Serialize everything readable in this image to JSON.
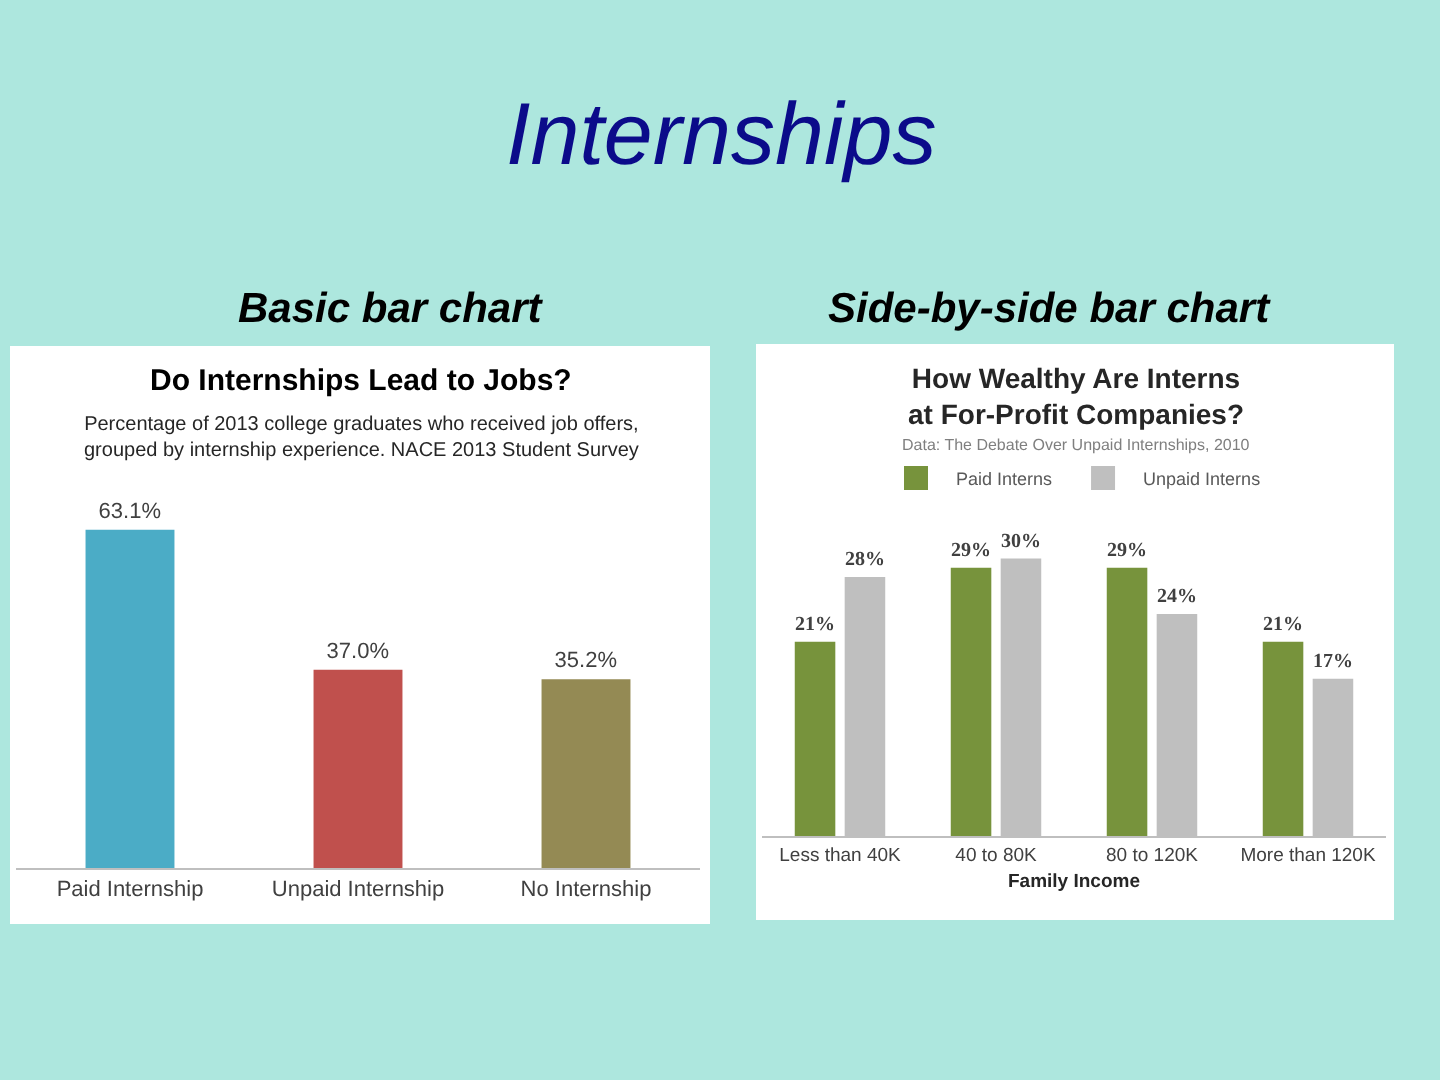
{
  "chart_data": [
    {
      "type": "other",
      "title": "Internships"
    },
    {
      "type": "bar",
      "title": "Do Internships Lead to Jobs?",
      "subtitle": "Percentage of 2013 college graduates who received job offers,\ngrouped by internship experience. NACE 2013 Student Survey",
      "annotations": [
        "Basic bar chart"
      ],
      "categories": [
        "Paid Internship",
        "Unpaid Internship",
        "No Internship"
      ],
      "values": [
        63.1,
        37.0,
        35.2
      ],
      "colors": [
        "#4bacc6",
        "#c0504d",
        "#948a54"
      ],
      "value_labels": [
        "63.1%",
        "37.0%",
        "35.2%"
      ],
      "tick_labels": "x"
    },
    {
      "type": "bar",
      "title": "How Wealthy Are Interns\nat For-Profit Companies?",
      "subtitle": "Data: The Debate Over Unpaid Internships, 2010",
      "annotations": [
        "Side-by-side bar chart"
      ],
      "xlabel": "Family Income",
      "categories": [
        "Less than 40K",
        "40 to 80K",
        "80 to 120K",
        "More than 120K"
      ],
      "series": [
        {
          "name": "Paid Interns",
          "color": "#77933c",
          "values": [
            21,
            29,
            29,
            21
          ],
          "value_labels": [
            "21%",
            "29%",
            "29%",
            "21%"
          ]
        },
        {
          "name": "Unpaid Interns",
          "color": "#bfbfbf",
          "values": [
            28,
            30,
            24,
            17
          ],
          "value_labels": [
            "28%",
            "30%",
            "24%",
            "17%"
          ]
        }
      ],
      "legend": "top",
      "tick_labels": "x"
    }
  ]
}
